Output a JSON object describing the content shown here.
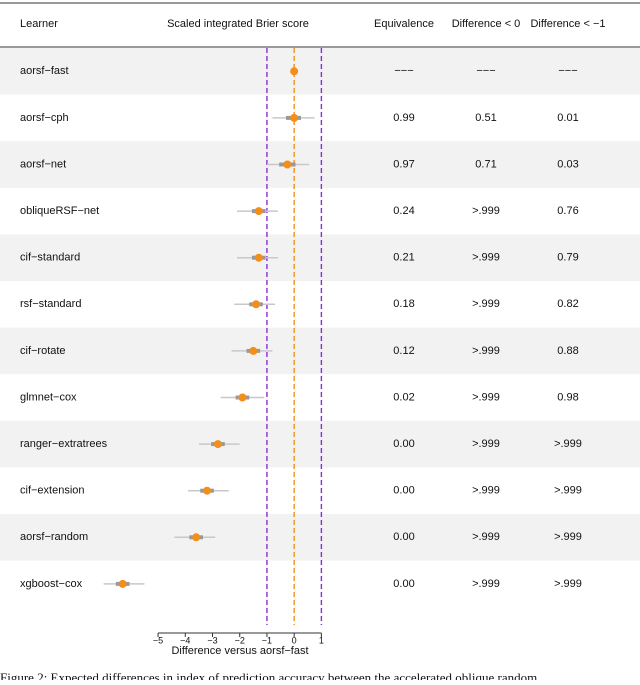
{
  "chart_data": {
    "type": "forest",
    "column_headers": [
      "Learner",
      "Scaled integrated Brier score",
      "Equivalence",
      "Difference < 0",
      "Difference < −1"
    ],
    "categories": [
      "aorsf−fast",
      "aorsf−cph",
      "aorsf−net",
      "obliqueRSF−net",
      "cif−standard",
      "rsf−standard",
      "cif−rotate",
      "glmnet−cox",
      "ranger−extratrees",
      "cif−extension",
      "aorsf−random",
      "xgboost−cox"
    ],
    "estimate": [
      0,
      0,
      -0.25,
      -1.3,
      -1.3,
      -1.4,
      -1.5,
      -1.9,
      -2.8,
      -3.2,
      -3.6,
      -6.3
    ],
    "inner_lower": [
      null,
      -0.3,
      -0.55,
      -1.55,
      -1.55,
      -1.65,
      -1.75,
      -2.15,
      -3.05,
      -3.45,
      -3.85,
      -6.55
    ],
    "inner_upper": [
      null,
      0.25,
      0.05,
      -1.05,
      -1.05,
      -1.15,
      -1.25,
      -1.65,
      -2.55,
      -2.95,
      -3.35,
      -6.05
    ],
    "outer_lower": [
      null,
      -0.8,
      -1.0,
      -2.1,
      -2.1,
      -2.2,
      -2.3,
      -2.7,
      -3.5,
      -3.9,
      -4.4,
      -7.0
    ],
    "outer_upper": [
      null,
      0.75,
      0.55,
      -0.6,
      -0.6,
      -0.7,
      -0.8,
      -1.1,
      -2.0,
      -2.4,
      -2.9,
      -5.5
    ],
    "point_color": "#f28e1c",
    "interval_color": "#999999",
    "equivalence": [
      "−−−",
      "0.99",
      "0.97",
      "0.24",
      "0.21",
      "0.18",
      "0.12",
      "0.02",
      "0.00",
      "0.00",
      "0.00",
      "0.00"
    ],
    "difference_lt_0": [
      "−−−",
      "0.51",
      "0.71",
      ">.999",
      ">.999",
      ">.999",
      ">.999",
      ">.999",
      ">.999",
      ">.999",
      ">.999",
      ">.999"
    ],
    "difference_lt_minus1": [
      "−−−",
      "0.01",
      "0.03",
      "0.76",
      "0.79",
      "0.82",
      "0.88",
      "0.98",
      ">.999",
      ">.999",
      ">.999",
      ">.999"
    ],
    "ref_lines": [
      {
        "value": -1,
        "color": "#8a2be2"
      },
      {
        "value": 0,
        "color": "#f28e1c"
      },
      {
        "value": 1,
        "color": "#8a2be2"
      }
    ],
    "xlim": [
      -7.5,
      1.5
    ],
    "xticks": [
      {
        "value": -5,
        "label": "−5"
      },
      {
        "value": -4,
        "label": "−4"
      },
      {
        "value": -3,
        "label": "−3"
      },
      {
        "value": -2,
        "label": "−2"
      },
      {
        "value": -1,
        "label": "−1"
      },
      0,
      1
    ],
    "xlabel": "Difference versus aorsf−fast"
  },
  "caption": "Figure 2: Expected differences in index of prediction accuracy between the accelerated oblique random"
}
